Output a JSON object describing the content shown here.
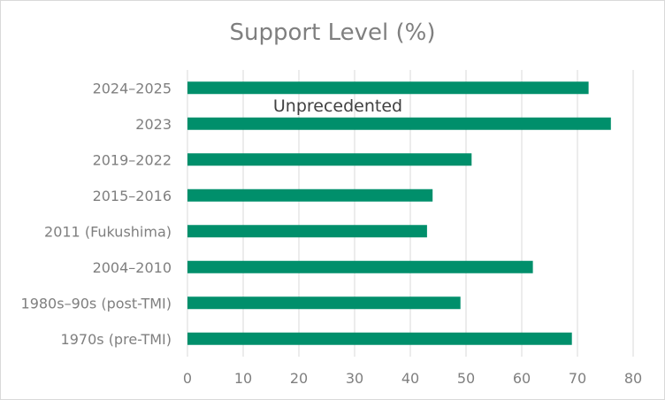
{
  "chart_data": {
    "type": "bar",
    "orientation": "horizontal",
    "title": "Support Level (%)",
    "categories": [
      "2024–2025",
      "2023",
      "2019–2022",
      "2015–2016",
      "2011 (Fukushima)",
      "2004–2010",
      "1980s–90s (post-TMI)",
      "1970s (pre-TMI)"
    ],
    "values": [
      72,
      76,
      51,
      44,
      43,
      62,
      49,
      69
    ],
    "xlim": [
      0,
      80
    ],
    "xticks": [
      0,
      10,
      20,
      30,
      40,
      50,
      60,
      70,
      80
    ],
    "grid": "vertical",
    "bar_color": "#008f6b",
    "annotations": [
      {
        "text": "Unprecedented",
        "category": "2023"
      }
    ]
  }
}
